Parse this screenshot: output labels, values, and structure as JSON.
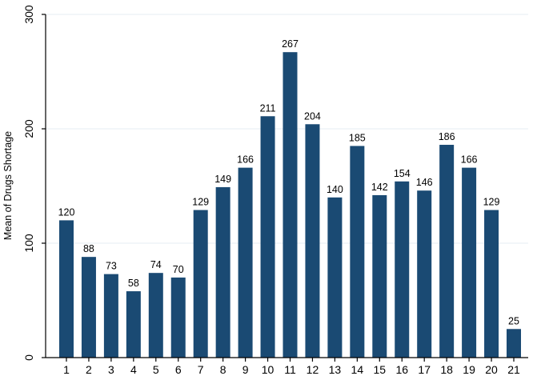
{
  "chart_data": {
    "type": "bar",
    "title": "",
    "xlabel": "",
    "ylabel": "Mean of Drugs Shortage",
    "categories": [
      "1",
      "2",
      "3",
      "4",
      "5",
      "6",
      "7",
      "8",
      "9",
      "10",
      "11",
      "12",
      "13",
      "14",
      "15",
      "16",
      "17",
      "18",
      "19",
      "20",
      "21"
    ],
    "values": [
      120,
      88,
      73,
      58,
      74,
      70,
      129,
      149,
      166,
      211,
      267,
      204,
      140,
      185,
      142,
      154,
      146,
      186,
      166,
      129,
      25
    ],
    "data_labels": [
      "120",
      "88",
      "73",
      "58",
      "74",
      "70",
      "129",
      "149",
      "166",
      "211",
      "267",
      "204",
      "140",
      "185",
      "142",
      "154",
      "146",
      "186",
      "166",
      "129",
      "25"
    ],
    "ylim": [
      0,
      300
    ],
    "yticks": [
      0,
      100,
      200,
      300
    ],
    "ytick_labels": [
      "0",
      "100",
      "200",
      "300"
    ],
    "grid": "horizontal",
    "legend": "none",
    "colors": {
      "bar": "#1a4a73",
      "grid": "#e6edf3",
      "axis": "#000000",
      "text": "#000000",
      "background": "#ffffff"
    }
  }
}
